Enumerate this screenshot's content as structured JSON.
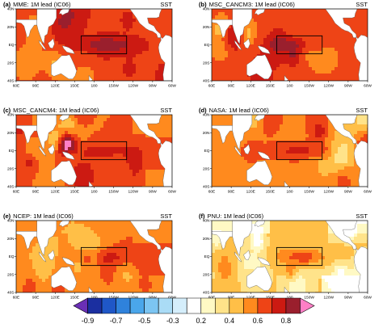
{
  "legend": {
    "levels": [
      -0.9,
      -0.8,
      -0.7,
      -0.6,
      -0.5,
      -0.4,
      -0.3,
      -0.2,
      0.2,
      0.3,
      0.4,
      0.5,
      0.6,
      0.7,
      0.8,
      0.9
    ],
    "labels": [
      "-0.9",
      "-0.7",
      "-0.5",
      "-0.3",
      "0.2",
      "0.4",
      "0.6",
      "0.8"
    ],
    "colors": [
      "#6a2fb5",
      "#1b2fa0",
      "#1f57c7",
      "#2f82dc",
      "#4aa6ea",
      "#7cc5f2",
      "#aadcf6",
      "#d5eefb",
      "#ffffff",
      "#fff9c4",
      "#ffe38a",
      "#ffbf47",
      "#ff8a1e",
      "#ee4416",
      "#cc1a12",
      "#9a1f2d",
      "#ff7fc6"
    ]
  },
  "chart_data": [
    {
      "type": "heatmap",
      "letter": "(a)",
      "title": "MME: 1M lead (IC06)",
      "variable": "SST",
      "region": "tropical Pacific 60E-60W, 40S-40N",
      "lon_ticks": [
        "60E",
        "90E",
        "120E",
        "150E",
        "180",
        "150W",
        "120W",
        "90W",
        "60W"
      ],
      "lat_ticks": [
        "40N",
        "20N",
        "EQ",
        "20S",
        "40S"
      ],
      "box": {
        "lon": [
          160,
          230
        ],
        "lat": [
          -10,
          10
        ]
      }
    },
    {
      "type": "heatmap",
      "letter": "(b)",
      "title": "MSC_CANCM3: 1M lead (IC06)",
      "variable": "SST",
      "region": "tropical Pacific 60E-60W, 40S-40N",
      "lon_ticks": [
        "60E",
        "90E",
        "120E",
        "150E",
        "180",
        "150W",
        "120W",
        "90W",
        "60W"
      ],
      "lat_ticks": [
        "40N",
        "20N",
        "EQ",
        "20S",
        "40S"
      ],
      "box": {
        "lon": [
          160,
          230
        ],
        "lat": [
          -10,
          10
        ]
      }
    },
    {
      "type": "heatmap",
      "letter": "(c)",
      "title": "MSC_CANCM4: 1M lead (IC06)",
      "variable": "SST",
      "region": "tropical Pacific 60E-60W, 40S-40N",
      "lon_ticks": [
        "60E",
        "90E",
        "120E",
        "150E",
        "180",
        "150W",
        "120W",
        "90W",
        "60W"
      ],
      "lat_ticks": [
        "40N",
        "20N",
        "EQ",
        "20S",
        "40S"
      ],
      "box": {
        "lon": [
          160,
          230
        ],
        "lat": [
          -10,
          10
        ]
      }
    },
    {
      "type": "heatmap",
      "letter": "(d)",
      "title": "NASA: 1M lead (IC06)",
      "variable": "SST",
      "region": "tropical Pacific 60E-60W, 40S-40N",
      "lon_ticks": [
        "60E",
        "90E",
        "120E",
        "150E",
        "180",
        "150W",
        "120W",
        "90W",
        "60W"
      ],
      "lat_ticks": [
        "40N",
        "20N",
        "EQ",
        "20S",
        "40S"
      ],
      "box": {
        "lon": [
          160,
          230
        ],
        "lat": [
          -10,
          10
        ]
      }
    },
    {
      "type": "heatmap",
      "letter": "(e)",
      "title": "NCEP: 1M lead (IC06)",
      "variable": "SST",
      "region": "tropical Pacific 60E-60W, 40S-40N",
      "lon_ticks": [
        "60E",
        "90E",
        "120E",
        "150E",
        "180",
        "150W",
        "120W",
        "90W",
        "60W"
      ],
      "lat_ticks": [
        "40N",
        "20N",
        "EQ",
        "20S",
        "40S"
      ],
      "box": {
        "lon": [
          160,
          230
        ],
        "lat": [
          -10,
          10
        ]
      }
    },
    {
      "type": "heatmap",
      "letter": "(f)",
      "title": "PNU: 1M lead (IC06)",
      "variable": "SST",
      "region": "tropical Pacific 60E-60W, 40S-40N",
      "lon_ticks": [
        "60E",
        "90E",
        "120E",
        "150E",
        "180",
        "150W",
        "120W",
        "90W",
        "60W"
      ],
      "lat_ticks": [
        "40N",
        "20N",
        "EQ",
        "20S",
        "40S"
      ],
      "box": {
        "lon": [
          160,
          230
        ],
        "lat": [
          -10,
          10
        ]
      }
    }
  ]
}
